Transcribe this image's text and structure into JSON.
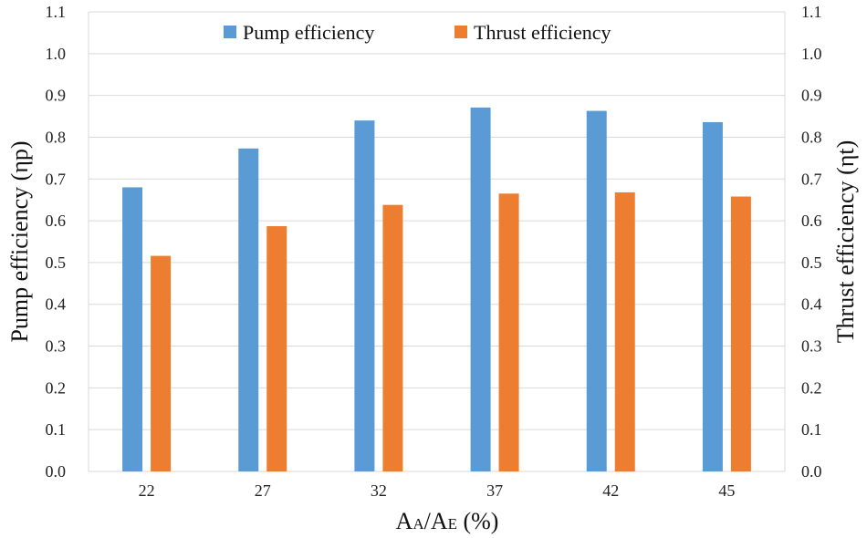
{
  "chart_data": {
    "type": "bar",
    "categories": [
      "22",
      "27",
      "32",
      "37",
      "42",
      "45"
    ],
    "series": [
      {
        "name": "Pump efficiency",
        "color": "#5b9bd5",
        "values": [
          0.68,
          0.773,
          0.84,
          0.871,
          0.863,
          0.836
        ]
      },
      {
        "name": "Thrust efficiency",
        "color": "#ed7d31",
        "values": [
          0.516,
          0.587,
          0.638,
          0.665,
          0.668,
          0.658
        ]
      }
    ],
    "xlabel_main": "A",
    "xlabel_sub1": "A",
    "xlabel_mid": "/A",
    "xlabel_sub2": "E",
    "xlabel_tail": " (%)",
    "ylabel_left": "Pump efficiency (ηp)",
    "ylabel_right": "Thrust efficiency (ηt)",
    "ylim": [
      0,
      1.1
    ],
    "yticks": [
      "0.0",
      "0.1",
      "0.2",
      "0.3",
      "0.4",
      "0.5",
      "0.6",
      "0.7",
      "0.8",
      "0.9",
      "1.0",
      "1.1"
    ],
    "grid": true,
    "legend_position": "top-center"
  }
}
